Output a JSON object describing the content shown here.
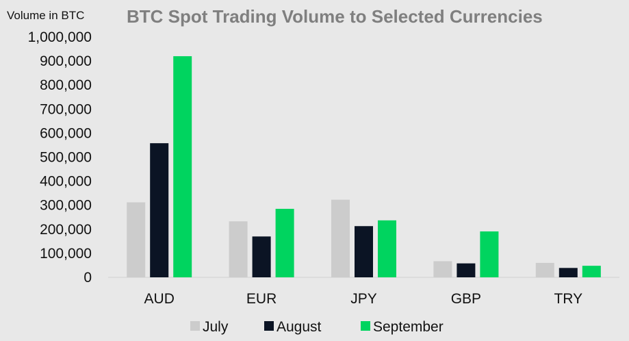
{
  "chart_data": {
    "type": "bar",
    "title": "BTC Spot Trading Volume to Selected Currencies",
    "ylabel": "Volume in BTC",
    "xlabel": "",
    "categories": [
      "AUD",
      "EUR",
      "JPY",
      "GBP",
      "TRY"
    ],
    "series": [
      {
        "name": "July",
        "color": "#cccccc",
        "values": [
          312000,
          233000,
          323000,
          67000,
          60000
        ]
      },
      {
        "name": "August",
        "color": "#0b1424",
        "values": [
          558000,
          170000,
          213000,
          58000,
          39000
        ]
      },
      {
        "name": "September",
        "color": "#00d45f",
        "values": [
          920000,
          285000,
          237000,
          191000,
          48000
        ]
      }
    ],
    "ylim": [
      0,
      1000000
    ],
    "yticks": [
      0,
      100000,
      200000,
      300000,
      400000,
      500000,
      600000,
      700000,
      800000,
      900000,
      1000000
    ],
    "ytick_labels": [
      "0",
      "100,000",
      "200,000",
      "300,000",
      "400,000",
      "500,000",
      "600,000",
      "700,000",
      "800,000",
      "900,000",
      "1,000,000"
    ],
    "grid": false,
    "legend_position": "bottom"
  }
}
